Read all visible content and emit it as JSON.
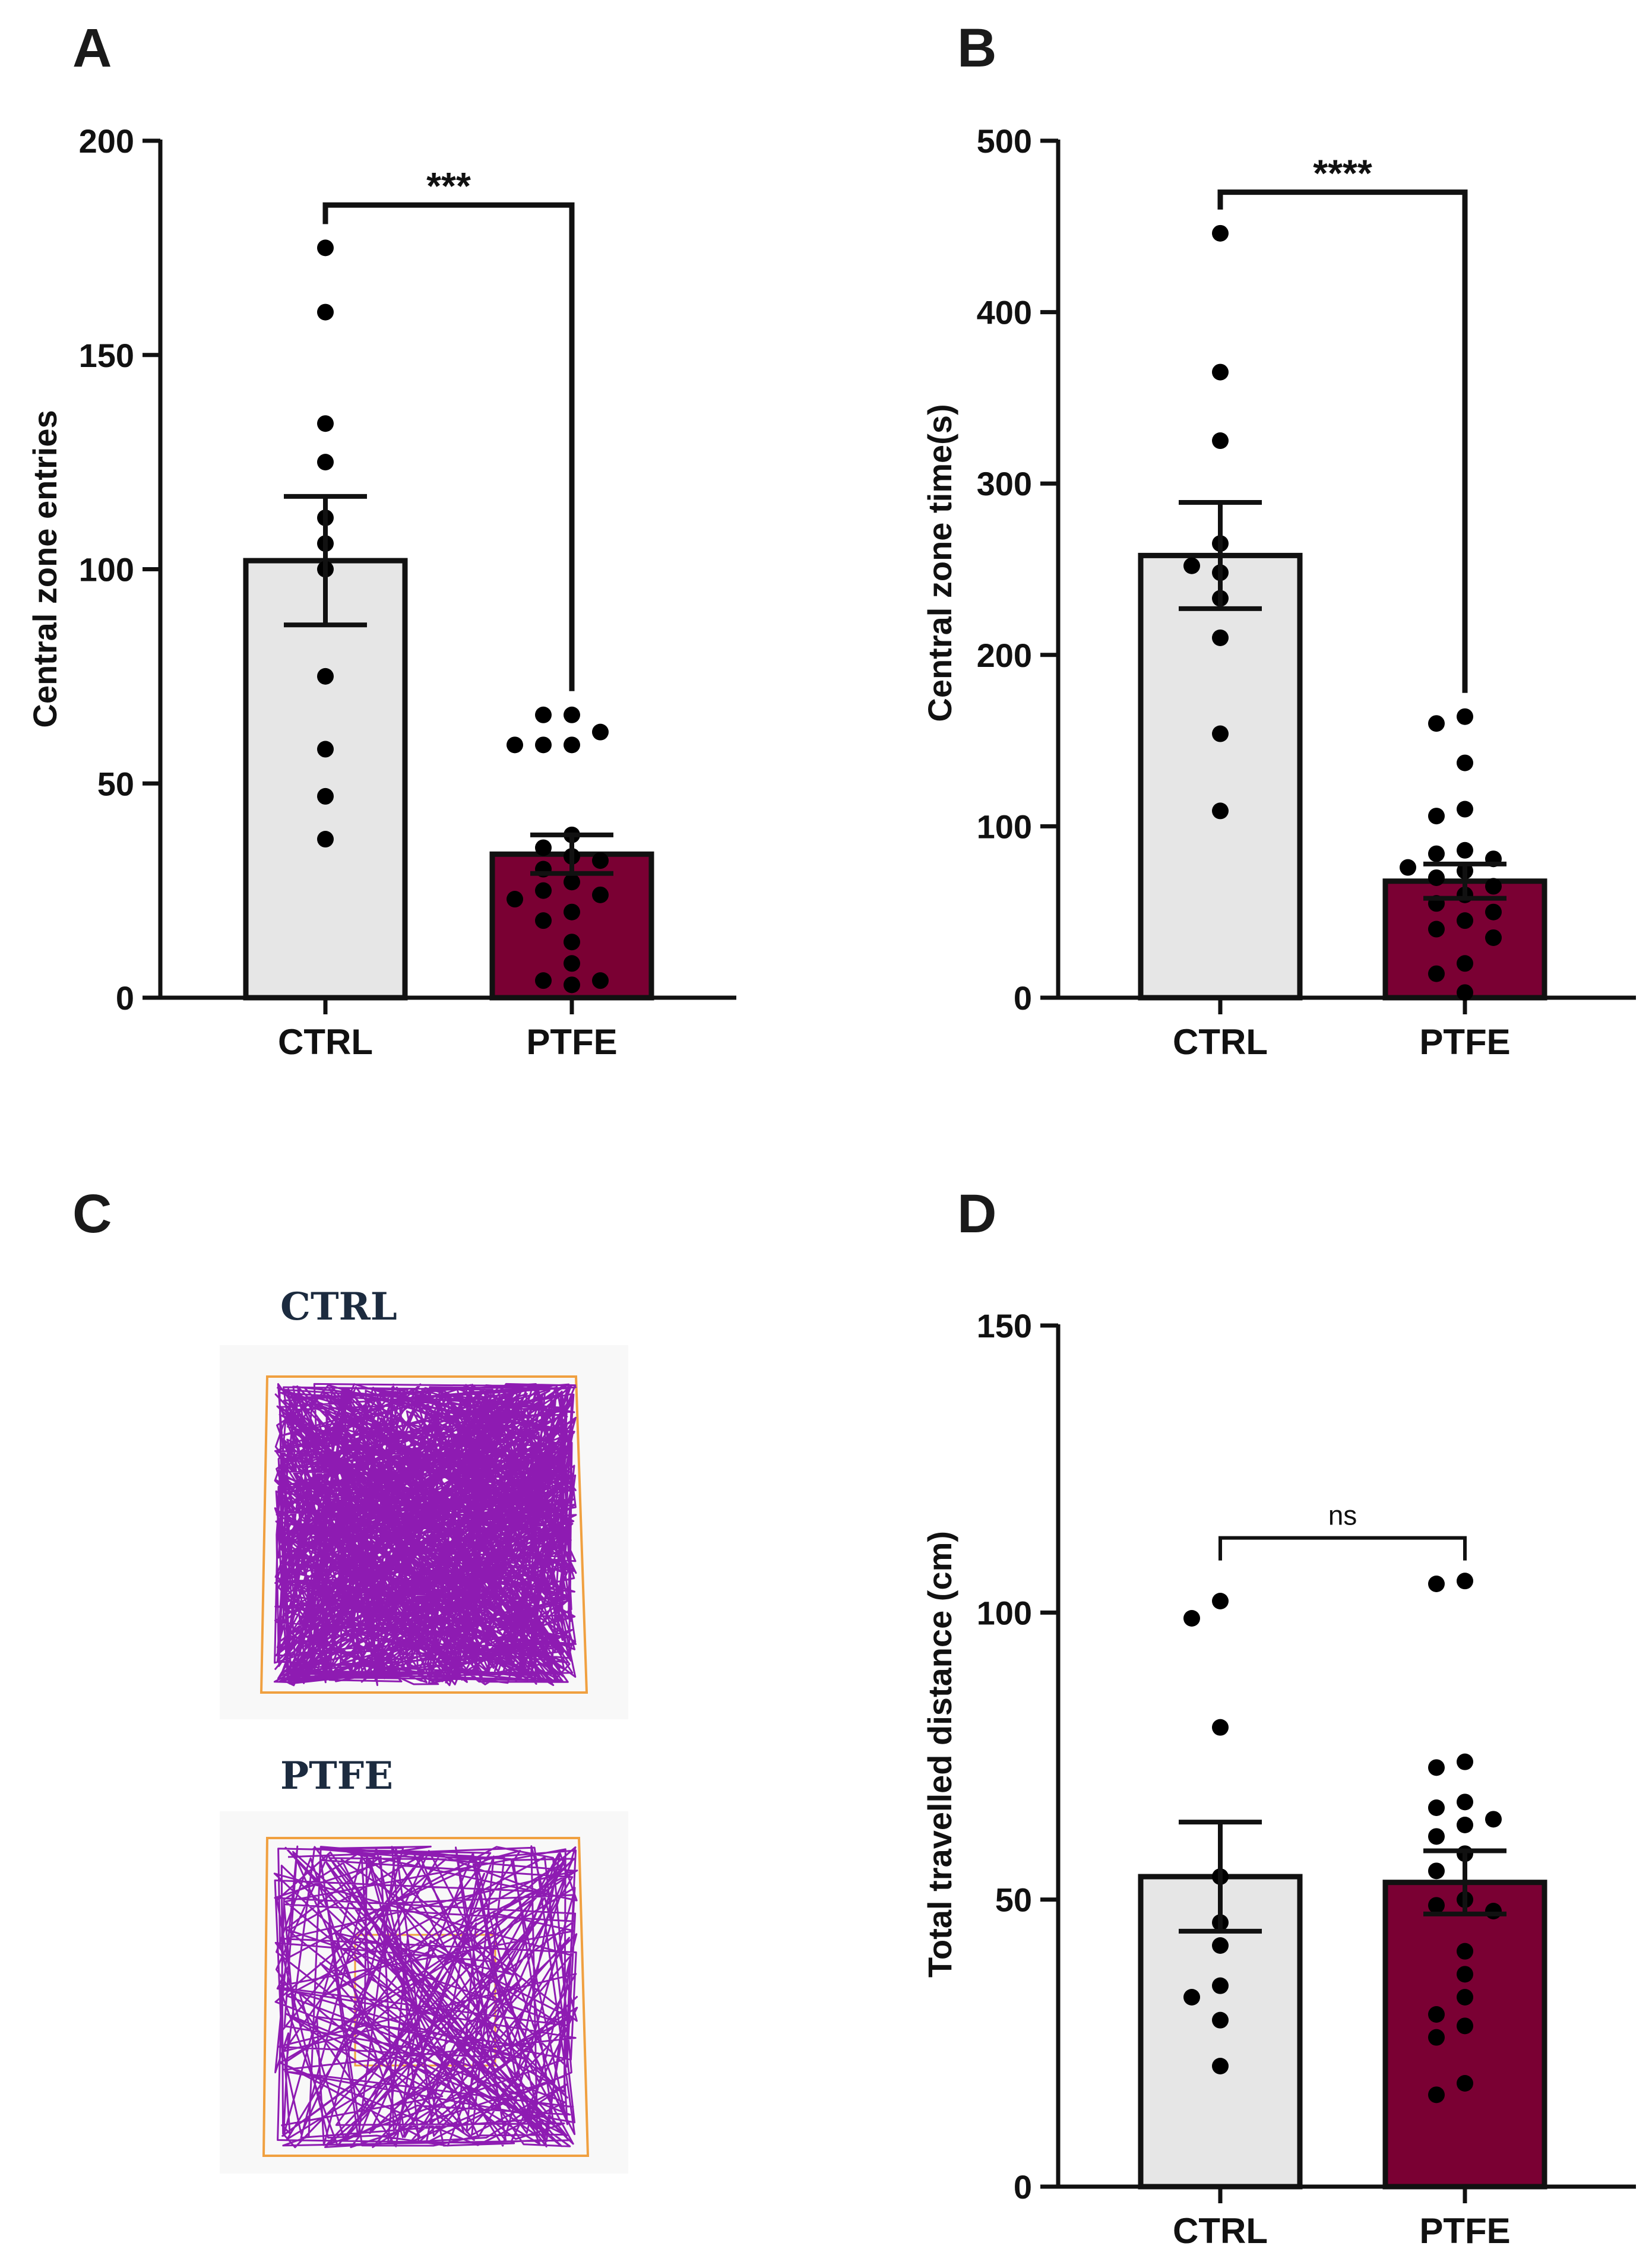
{
  "chart_data": [
    {
      "panel": "A",
      "type": "bar",
      "categories": [
        "CTRL",
        "PTFE"
      ],
      "ylabel": "Central zone entries",
      "ylim": [
        0,
        200
      ],
      "yticks": [
        0,
        50,
        100,
        150,
        200
      ],
      "tick_labels": [
        "0",
        "50",
        "100",
        "150",
        "200"
      ],
      "series": [
        {
          "name": "CTRL",
          "color": "#e6e6e6",
          "mean": 102,
          "sem": 15,
          "points": [
            175,
            160,
            134,
            125,
            112,
            106,
            100,
            75,
            58,
            47,
            37
          ]
        },
        {
          "name": "PTFE",
          "color": "#7a0033",
          "mean": 33.5,
          "sem": 4.5,
          "points": [
            66,
            66,
            62,
            59,
            59,
            59,
            38,
            35,
            33,
            32,
            30,
            27,
            25,
            24,
            23,
            20,
            18,
            13,
            8,
            4,
            4,
            3
          ]
        }
      ],
      "significance": {
        "label": "***",
        "from": "CTRL",
        "to": "PTFE",
        "level": 185
      }
    },
    {
      "panel": "B",
      "type": "bar",
      "categories": [
        "CTRL",
        "PTFE"
      ],
      "ylabel": "Central zone time(s)",
      "ylim": [
        0,
        500
      ],
      "yticks": [
        0,
        100,
        200,
        300,
        400,
        500
      ],
      "tick_labels": [
        "0",
        "100",
        "200",
        "300",
        "400",
        "500"
      ],
      "series": [
        {
          "name": "CTRL",
          "color": "#e6e6e6",
          "mean": 258,
          "sem": 31,
          "points": [
            446,
            365,
            325,
            265,
            248,
            252,
            233,
            210,
            154,
            109
          ]
        },
        {
          "name": "PTFE",
          "color": "#7a0033",
          "mean": 68,
          "sem": 10,
          "points": [
            164,
            160,
            137,
            110,
            106,
            86,
            84,
            81,
            76,
            74,
            70,
            65,
            60,
            55,
            50,
            45,
            40,
            35,
            20,
            14,
            3
          ]
        }
      ],
      "significance": {
        "label": "****",
        "from": "CTRL",
        "to": "PTFE",
        "level": 470
      }
    },
    {
      "panel": "D",
      "type": "bar",
      "categories": [
        "CTRL",
        "PTFE"
      ],
      "ylabel": "Total travelled distance (cm)",
      "ylim": [
        0,
        150
      ],
      "yticks": [
        0,
        50,
        100,
        150
      ],
      "tick_labels": [
        "0",
        "50",
        "100",
        "150"
      ],
      "series": [
        {
          "name": "CTRL",
          "color": "#e6e6e6",
          "mean": 54,
          "sem": 9.5,
          "points": [
            102,
            99,
            80,
            54,
            46,
            42,
            35,
            33,
            29,
            21
          ]
        },
        {
          "name": "PTFE",
          "color": "#7a0033",
          "mean": 53,
          "sem": 5.5,
          "points": [
            105.5,
            105,
            74,
            73,
            67,
            66,
            64,
            63,
            61,
            58,
            55,
            50,
            49,
            48,
            41,
            37,
            33,
            30,
            28,
            26,
            18,
            16
          ]
        }
      ],
      "significance": {
        "label": "ns",
        "from": "CTRL",
        "to": "PTFE",
        "level": 113
      }
    }
  ],
  "panels": {
    "a": {
      "letter": "A"
    },
    "b": {
      "letter": "B"
    },
    "c": {
      "letter": "C",
      "ctrl_title": "CTRL",
      "ptfe_title": "PTFE"
    },
    "d": {
      "letter": "D"
    }
  },
  "colors": {
    "ctrl_bar": "#e6e6e6",
    "ptfe_bar": "#7a0033",
    "track": "#8e1bb2",
    "arena": "#f0a040",
    "point": "#000000"
  }
}
